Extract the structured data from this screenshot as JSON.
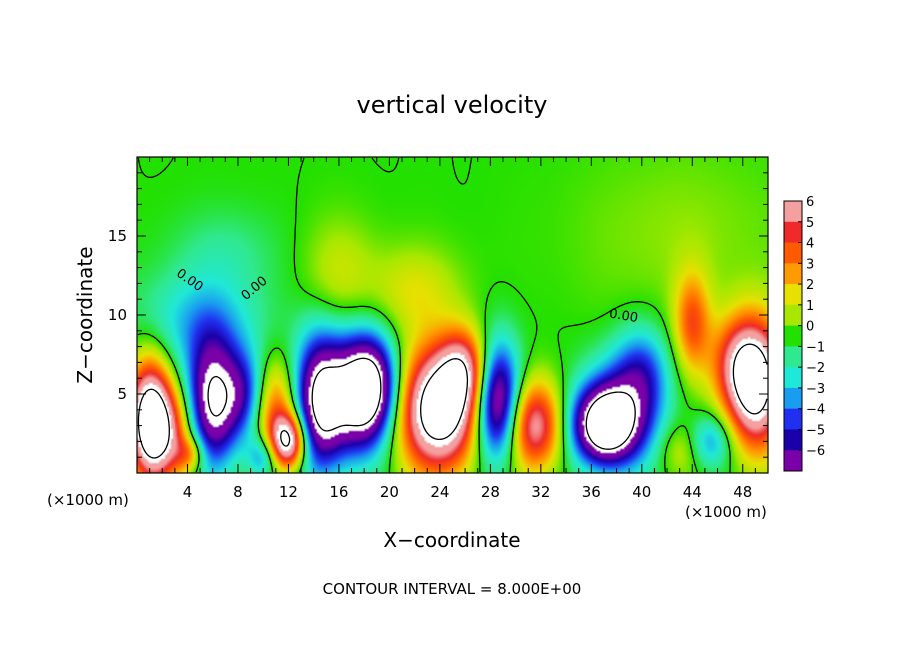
{
  "chart_data": {
    "type": "heatmap",
    "title": "vertical velocity",
    "xlabel": "X−coordinate",
    "ylabel": "Z−coordinate",
    "x_unit": "(×1000 m)",
    "x_unit_right": "(×1000 m)",
    "xlim": [
      0,
      50
    ],
    "ylim": [
      0,
      20
    ],
    "x_ticks": [
      4,
      8,
      12,
      16,
      20,
      24,
      28,
      32,
      36,
      40,
      44,
      48
    ],
    "x_minor_step": 1,
    "y_ticks": [
      5,
      10,
      15
    ],
    "y_minor_step": 1,
    "colorbar": {
      "levels": [
        6,
        5,
        4,
        3,
        2,
        1,
        0,
        -1,
        -2,
        -3,
        -4,
        -5,
        -6
      ],
      "labels": [
        "6",
        "5",
        "4",
        "3",
        "2",
        "1",
        "0",
        "−1",
        "−2",
        "−3",
        "−4",
        "−5",
        "−6"
      ],
      "colors": [
        "#f4a0a0",
        "#ee2a2a",
        "#ff5a00",
        "#ff9a00",
        "#e8e000",
        "#a8e800",
        "#22e000",
        "#30e890",
        "#20e8d8",
        "#1a9cf0",
        "#2030f0",
        "#1a00a8",
        "#7a00a8"
      ]
    },
    "contour_labels": [
      "0.00",
      "0.00",
      "0.00"
    ],
    "annotation": "CONTOUR INTERVAL = 8.000E+00",
    "features": [
      {
        "x": 1.0,
        "z": 3.5,
        "w": 9.0,
        "sx": 1.2,
        "sz": 2.6
      },
      {
        "x": 2.5,
        "z": 2.5,
        "w": 4.5,
        "sx": 1.5,
        "sz": 2.0
      },
      {
        "x": 4.2,
        "z": 1.2,
        "w": 3.0,
        "sx": 0.8,
        "sz": 0.8
      },
      {
        "x": 6.0,
        "z": 4.5,
        "w": -8.0,
        "sx": 1.4,
        "sz": 2.8
      },
      {
        "x": 8.5,
        "z": 5.0,
        "w": -4.0,
        "sx": 1.2,
        "sz": 2.0
      },
      {
        "x": 5.0,
        "z": 9.5,
        "w": -2.5,
        "sx": 3.5,
        "sz": 2.2
      },
      {
        "x": 10.0,
        "z": 1.0,
        "w": -3.5,
        "sx": 0.9,
        "sz": 1.0
      },
      {
        "x": 11.0,
        "z": 4.0,
        "w": 4.0,
        "sx": 1.2,
        "sz": 2.2
      },
      {
        "x": 12.0,
        "z": 2.0,
        "w": 8.0,
        "sx": 1.0,
        "sz": 1.2
      },
      {
        "x": 14.5,
        "z": 4.5,
        "w": -8.5,
        "sx": 1.4,
        "sz": 3.0
      },
      {
        "x": 17.5,
        "z": 5.0,
        "w": -8.0,
        "sx": 1.6,
        "sz": 2.6
      },
      {
        "x": 19.0,
        "z": 5.5,
        "w": -5.0,
        "sx": 1.4,
        "sz": 2.2
      },
      {
        "x": 16.0,
        "z": 12.5,
        "w": 1.5,
        "sx": 2.0,
        "sz": 2.5
      },
      {
        "x": 24.0,
        "z": 4.0,
        "w": 10.0,
        "sx": 2.3,
        "sz": 2.7
      },
      {
        "x": 26.0,
        "z": 6.5,
        "w": 5.0,
        "sx": 1.4,
        "sz": 1.8
      },
      {
        "x": 22.0,
        "z": 11.5,
        "w": 1.8,
        "sx": 2.5,
        "sz": 2.0
      },
      {
        "x": 28.5,
        "z": 4.5,
        "w": -9.0,
        "sx": 1.3,
        "sz": 2.6
      },
      {
        "x": 31.5,
        "z": 3.0,
        "w": 6.5,
        "sx": 1.6,
        "sz": 2.0
      },
      {
        "x": 37.0,
        "z": 3.0,
        "w": -9.0,
        "sx": 1.8,
        "sz": 1.7
      },
      {
        "x": 38.5,
        "z": 4.0,
        "w": -4.0,
        "sx": 2.3,
        "sz": 2.5
      },
      {
        "x": 40.0,
        "z": 6.5,
        "w": -3.0,
        "sx": 1.5,
        "sz": 2.0
      },
      {
        "x": 43.0,
        "z": 1.5,
        "w": 1.5,
        "sx": 1.2,
        "sz": 1.2
      },
      {
        "x": 44.0,
        "z": 9.5,
        "w": 4.0,
        "sx": 1.0,
        "sz": 2.2
      },
      {
        "x": 45.5,
        "z": 2.0,
        "w": -3.0,
        "sx": 1.2,
        "sz": 1.2
      },
      {
        "x": 49.0,
        "z": 5.5,
        "w": 9.0,
        "sx": 1.6,
        "sz": 2.8
      },
      {
        "x": 47.5,
        "z": 7.0,
        "w": 3.5,
        "sx": 1.6,
        "sz": 2.0
      },
      {
        "x": 43.0,
        "z": 15.0,
        "w": 0.8,
        "sx": 6.0,
        "sz": 4.0
      },
      {
        "x": 7.0,
        "z": 14.0,
        "w": -1.0,
        "sx": 3.0,
        "sz": 2.0
      }
    ]
  }
}
